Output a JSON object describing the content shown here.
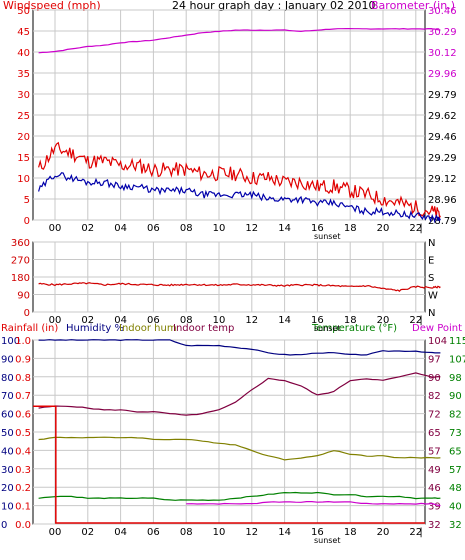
{
  "header": {
    "title": "24 hour graph day : January 02 2010",
    "left_label": "Windspeed (mph)",
    "right_label": "Barometer (in.)"
  },
  "colors": {
    "wind": "#e00000",
    "gust_avg": "#0000aa",
    "barometer": "#cc00cc",
    "direction": "#d00000",
    "rainfall": "#e00000",
    "humidity": "#000080",
    "indoor_hum": "#808000",
    "indoor_temp": "#800040",
    "temperature": "#008000",
    "dew_point": "#cc00cc",
    "grid": "#c8c8c8",
    "frame": "#000000"
  },
  "hour_labels": [
    "00",
    "02",
    "04",
    "06",
    "08",
    "10",
    "12",
    "14",
    "16",
    "18",
    "20",
    "22"
  ],
  "sunset_label": "sunset",
  "chart_data": [
    {
      "type": "line",
      "panel": "wind-barometer",
      "title": "24 hour graph day : January 02 2010",
      "xlabel": "",
      "ylabel": "Windspeed (mph)",
      "y2label": "Barometer (in.)",
      "ylim": [
        0,
        50
      ],
      "y2lim": [
        28.79,
        30.46
      ],
      "y_ticks": [
        0,
        5,
        10,
        15,
        20,
        25,
        30,
        35,
        40,
        45,
        50
      ],
      "y_tick_labels": [
        "0",
        "5",
        "10",
        "15",
        "20",
        "25",
        "30",
        "35",
        "40",
        "45",
        "50"
      ],
      "y2_ticks": [
        28.79,
        28.96,
        29.12,
        29.29,
        29.46,
        29.62,
        29.79,
        29.96,
        30.12,
        30.29,
        30.46
      ],
      "y2_tick_labels": [
        "28.79",
        "28.96",
        "29.12",
        "29.29",
        "29.46",
        "29.62",
        "29.79",
        "29.96",
        "30.12",
        "30.29",
        "30.46"
      ],
      "x": [
        -1,
        0,
        1,
        2,
        3,
        4,
        5,
        6,
        7,
        8,
        9,
        10,
        11,
        12,
        13,
        14,
        15,
        16,
        17,
        18,
        19,
        20,
        21,
        22,
        23,
        23.5
      ],
      "series": [
        {
          "name": "Windspeed",
          "axis": "left",
          "color": "#e00000",
          "values": [
            12,
            17,
            16,
            14,
            14,
            13,
            13,
            12,
            12,
            12,
            11,
            11,
            11,
            10,
            10,
            9,
            9,
            8,
            8,
            7,
            6,
            5,
            4,
            3,
            2,
            1
          ]
        },
        {
          "name": "Average",
          "axis": "left",
          "color": "#0000aa",
          "values": [
            7,
            11,
            10,
            9,
            9,
            8,
            8,
            7,
            7,
            7,
            6,
            6,
            6,
            6,
            5,
            5,
            5,
            4,
            4,
            3,
            2,
            2,
            1.5,
            1,
            0.5,
            0.3
          ]
        },
        {
          "name": "Barometer",
          "axis": "right",
          "color": "#cc00cc",
          "values": [
            30.12,
            30.13,
            30.15,
            30.17,
            30.18,
            30.2,
            30.21,
            30.22,
            30.24,
            30.26,
            30.28,
            30.29,
            30.3,
            30.3,
            30.3,
            30.3,
            30.29,
            30.3,
            30.31,
            30.31,
            30.31,
            30.31,
            30.31,
            30.31,
            30.31,
            30.3
          ]
        }
      ]
    },
    {
      "type": "line",
      "panel": "wind-direction",
      "xlabel": "",
      "ylabel": "",
      "ylim": [
        0,
        360
      ],
      "y_ticks": [
        0,
        90,
        180,
        270,
        360
      ],
      "y_tick_labels": [
        "0",
        "90",
        "180",
        "270",
        "360"
      ],
      "y2_tick_labels": [
        "N",
        "W",
        "S",
        "E",
        "N"
      ],
      "x": [
        -1,
        0,
        1,
        2,
        3,
        4,
        5,
        6,
        7,
        8,
        9,
        10,
        11,
        12,
        13,
        14,
        15,
        16,
        17,
        18,
        19,
        20,
        21,
        22,
        23,
        23.5
      ],
      "series": [
        {
          "name": "Direction",
          "color": "#d00000",
          "values": [
            145,
            140,
            145,
            148,
            140,
            145,
            142,
            140,
            138,
            142,
            140,
            138,
            142,
            140,
            138,
            135,
            140,
            138,
            135,
            130,
            135,
            120,
            110,
            130,
            125,
            130
          ]
        }
      ]
    },
    {
      "type": "line",
      "panel": "rain-humidity-temperature",
      "legend": [
        "Rainfall (in)",
        "Humidity %",
        "Indoor hum",
        "Indoor temp",
        "Temperature (°F)",
        "Dew Point"
      ],
      "xlabel": "",
      "ylim": [
        0,
        100
      ],
      "y_ticks": [
        0,
        10,
        20,
        30,
        40,
        50,
        60,
        70,
        80,
        90,
        100
      ],
      "y_tick_labels": [
        "0",
        "10",
        "20",
        "30",
        "40",
        "50",
        "60",
        "70",
        "80",
        "90",
        "100"
      ],
      "y_rain_tick_labels": [
        "0.0",
        "0.1",
        "0.2",
        "0.3",
        "0.4",
        "0.5",
        "0.6",
        "0.7",
        "0.8",
        "0.9",
        "1.0"
      ],
      "y2_tick_labels": [
        "32",
        "39",
        "46",
        "49",
        "57",
        "65",
        "72",
        "82",
        "90",
        "97",
        "104"
      ],
      "y3_tick_labels": [
        "32",
        "40",
        "48",
        "57",
        "65",
        "73",
        "82",
        "90",
        "98",
        "107",
        "115"
      ],
      "x": [
        -1,
        0,
        1,
        2,
        3,
        4,
        5,
        6,
        7,
        8,
        9,
        10,
        11,
        12,
        13,
        14,
        15,
        16,
        17,
        18,
        19,
        20,
        21,
        22,
        23,
        23.5
      ],
      "series": [
        {
          "name": "Humidity",
          "color": "#000080",
          "values": [
            100,
            100,
            100,
            100,
            100,
            100,
            100,
            100,
            100,
            97,
            97,
            97,
            96,
            95,
            93,
            92,
            92,
            93,
            93,
            92,
            92,
            94,
            94,
            94,
            93,
            93
          ]
        },
        {
          "name": "Indoor hum",
          "color": "#808000",
          "values": [
            46,
            47,
            47,
            47,
            47,
            47,
            47,
            46,
            46,
            46,
            45,
            44,
            43,
            40,
            37,
            35,
            36,
            37,
            40,
            38,
            37,
            37,
            36,
            36,
            36,
            36
          ]
        },
        {
          "name": "Indoor temp",
          "color": "#800040",
          "values": [
            63,
            64,
            64,
            63,
            62,
            62,
            61,
            61,
            60,
            59,
            60,
            62,
            66,
            73,
            79,
            78,
            75,
            70,
            72,
            78,
            79,
            78,
            80,
            82,
            80,
            80
          ]
        },
        {
          "name": "Temperature",
          "color": "#008000",
          "values": [
            14,
            15,
            15,
            14,
            14,
            14,
            14,
            14,
            13,
            13,
            13,
            13,
            14,
            15,
            16,
            17,
            17,
            17,
            16,
            16,
            15,
            15,
            15,
            14,
            14,
            14
          ]
        },
        {
          "name": "Dew Point",
          "color": "#cc00cc",
          "values": [
            null,
            null,
            null,
            null,
            null,
            null,
            null,
            null,
            null,
            11,
            11,
            11,
            11,
            11,
            12,
            12,
            12,
            12,
            12,
            12,
            11,
            11,
            11,
            11,
            11,
            10
          ]
        },
        {
          "name": "Rainfall",
          "color": "#e00000",
          "values": [
            0.64,
            0.64,
            0,
            0,
            0,
            0,
            0,
            0,
            0,
            0,
            0,
            0,
            0,
            0,
            0,
            0,
            0,
            0,
            0,
            0,
            0,
            0,
            0,
            0,
            0,
            0
          ]
        }
      ]
    }
  ]
}
